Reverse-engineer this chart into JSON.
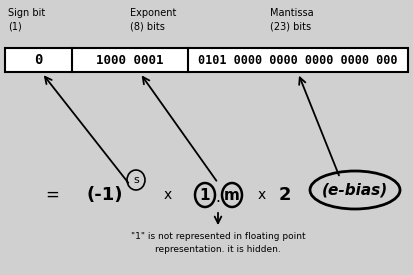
{
  "bg_color": "#d0d0d0",
  "sign_bit_label": "Sign bit\n(1)",
  "exp_label": "Exponent\n(8) bits",
  "mant_label": "Mantissa\n(23) bits",
  "sign_val": "0",
  "exp_val": "1000 0001",
  "mant_val": "0101 0000 0000 0000 0000 000",
  "formula_eq": "=",
  "formula_base": "(-1)",
  "formula_s": "s",
  "formula_x1": "x",
  "formula_x2": "x",
  "formula_2": "2",
  "formula_ebias": "(e-bias)",
  "formula_1": "1",
  "formula_m": "m",
  "note_line1": "\"1\" is not represented in floating point",
  "note_line2": "representation. it is hidden."
}
